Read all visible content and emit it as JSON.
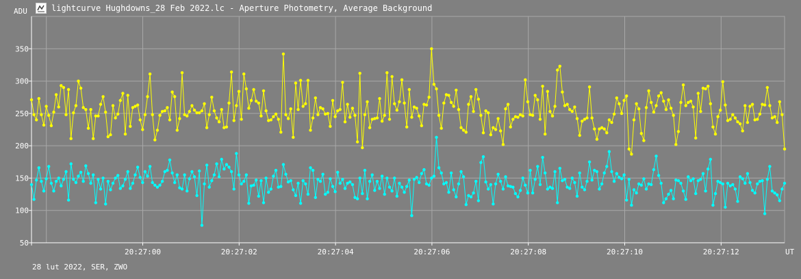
{
  "window": {
    "title": "lightcurve Hughdowns_28 Feb 2022.lc - Aperture Photometry, Average Background",
    "icon": "chart-icon"
  },
  "footer": "28 lut 2022, SER, ZWO",
  "colors": {
    "background": "#808080",
    "grid": "#a8a8a8",
    "axis": "#ffffff",
    "series_target": "#ffff00",
    "series_comparison": "#00ffff"
  },
  "chart_data": {
    "type": "line",
    "ylabel": "ADU",
    "xlabel": "UT",
    "ylim": [
      50,
      400
    ],
    "yticks": [
      50,
      100,
      150,
      200,
      250,
      300,
      350
    ],
    "xlim_seconds": [
      -2.0,
      13.6
    ],
    "xticks": [
      {
        "s": 0,
        "label": "20:27:00"
      },
      {
        "s": 2,
        "label": "20:27:02"
      },
      {
        "s": 4,
        "label": "20:27:04"
      },
      {
        "s": 6,
        "label": "20:27:06"
      },
      {
        "s": 8,
        "label": "20:27:08"
      },
      {
        "s": 10,
        "label": "20:27:10"
      },
      {
        "s": 12,
        "label": "20:27:12"
      }
    ],
    "grid": true,
    "series": [
      {
        "color": "#ffff00",
        "values": [
          271,
          248,
          240,
          273,
          248,
          232,
          261,
          247,
          231,
          252,
          279,
          260,
          293,
          290,
          248,
          287,
          211,
          251,
          262,
          300,
          289,
          259,
          256,
          227,
          256,
          211,
          246,
          246,
          264,
          276,
          252,
          214,
          217,
          262,
          243,
          249,
          270,
          281,
          218,
          278,
          230,
          259,
          261,
          263,
          240,
          225,
          248,
          276,
          311,
          248,
          209,
          224,
          247,
          253,
          254,
          259,
          240,
          283,
          276,
          224,
          242,
          313,
          248,
          246,
          253,
          262,
          255,
          251,
          251,
          254,
          265,
          228,
          248,
          275,
          254,
          243,
          237,
          256,
          228,
          229,
          266,
          314,
          239,
          262,
          284,
          241,
          311,
          288,
          258,
          270,
          287,
          269,
          266,
          246,
          285,
          254,
          239,
          240,
          245,
          249,
          241,
          221,
          342,
          248,
          242,
          257,
          213,
          297,
          256,
          301,
          261,
          265,
          301,
          224,
          243,
          274,
          248,
          259,
          257,
          249,
          250,
          230,
          270,
          245,
          254,
          256,
          298,
          237,
          264,
          244,
          258,
          247,
          206,
          312,
          197,
          248,
          268,
          228,
          241,
          242,
          243,
          273,
          238,
          247,
          313,
          241,
          307,
          265,
          255,
          268,
          302,
          266,
          229,
          287,
          244,
          260,
          258,
          246,
          231,
          264,
          263,
          275,
          350,
          295,
          288,
          247,
          227,
          266,
          279,
          278,
          267,
          261,
          286,
          256,
          228,
          224,
          221,
          264,
          276,
          253,
          287,
          272,
          247,
          220,
          254,
          251,
          217,
          228,
          225,
          242,
          223,
          202,
          257,
          264,
          229,
          241,
          245,
          244,
          248,
          246,
          302,
          268,
          248,
          247,
          278,
          271,
          241,
          292,
          218,
          284,
          253,
          246,
          261,
          317,
          323,
          283,
          262,
          264,
          256,
          253,
          260,
          242,
          216,
          238,
          241,
          243,
          291,
          243,
          226,
          210,
          226,
          228,
          226,
          220,
          240,
          236,
          249,
          274,
          265,
          250,
          270,
          277,
          195,
          187,
          240,
          265,
          257,
          219,
          208,
          259,
          285,
          267,
          252,
          262,
          277,
          282,
          269,
          256,
          271,
          258,
          247,
          202,
          222,
          267,
          294,
          262,
          267,
          269,
          260,
          212,
          281,
          253,
          289,
          288,
          292,
          265,
          229,
          218,
          245,
          255,
          299,
          263,
          239,
          241,
          248,
          243,
          237,
          234,
          223,
          262,
          236,
          261,
          264,
          240,
          241,
          249,
          264,
          263,
          290,
          262,
          243,
          245,
          236,
          268,
          248,
          195
        ]
      },
      {
        "color": "#00ffff",
        "values": [
          140,
          117,
          147,
          166,
          145,
          130,
          149,
          168,
          142,
          130,
          145,
          150,
          138,
          148,
          160,
          116,
          172,
          148,
          143,
          153,
          159,
          145,
          169,
          157,
          142,
          155,
          112,
          148,
          133,
          150,
          110,
          145,
          132,
          142,
          150,
          154,
          134,
          138,
          148,
          160,
          134,
          142,
          155,
          167,
          151,
          143,
          160,
          153,
          168,
          143,
          139,
          136,
          139,
          145,
          160,
          162,
          178,
          158,
          143,
          155,
          135,
          133,
          155,
          130,
          149,
          160,
          152,
          123,
          161,
          77,
          141,
          170,
          136,
          146,
          155,
          172,
          152,
          179,
          164,
          171,
          167,
          160,
          133,
          188,
          155,
          141,
          145,
          155,
          111,
          138,
          139,
          147,
          122,
          146,
          112,
          150,
          128,
          133,
          153,
          162,
          136,
          137,
          171,
          156,
          144,
          146,
          132,
          123,
          142,
          111,
          146,
          141,
          125,
          166,
          162,
          120,
          148,
          145,
          156,
          125,
          128,
          149,
          137,
          129,
          159,
          142,
          148,
          134,
          142,
          144,
          140,
          120,
          118,
          150,
          126,
          162,
          118,
          145,
          155,
          131,
          145,
          134,
          153,
          125,
          150,
          136,
          130,
          150,
          122,
          142,
          136,
          128,
          137,
          147,
          92,
          148,
          151,
          143,
          157,
          163,
          141,
          139,
          150,
          153,
          213,
          166,
          158,
          141,
          143,
          128,
          158,
          132,
          121,
          141,
          160,
          152,
          109,
          123,
          121,
          127,
          145,
          115,
          174,
          183,
          144,
          133,
          140,
          110,
          141,
          156,
          145,
          133,
          152,
          138,
          137,
          136,
          126,
          121,
          131,
          150,
          139,
          127,
          162,
          127,
          148,
          168,
          140,
          182,
          158,
          133,
          136,
          134,
          160,
          112,
          165,
          146,
          148,
          136,
          134,
          150,
          143,
          122,
          158,
          136,
          132,
          145,
          175,
          147,
          162,
          160,
          133,
          141,
          158,
          168,
          191,
          160,
          145,
          157,
          151,
          149,
          155,
          116,
          148,
          108,
          132,
          127,
          141,
          139,
          149,
          133,
          141,
          140,
          163,
          184,
          154,
          142,
          112,
          118,
          125,
          131,
          118,
          147,
          146,
          142,
          130,
          117,
          152,
          146,
          149,
          126,
          146,
          148,
          157,
          130,
          164,
          179,
          108,
          126,
          145,
          143,
          141,
          105,
          142,
          138,
          140,
          133,
          114,
          152,
          149,
          142,
          157,
          143,
          131,
          127,
          141,
          145,
          146,
          95,
          148,
          168,
          130,
          127,
          124,
          115,
          133,
          142
        ]
      }
    ]
  }
}
